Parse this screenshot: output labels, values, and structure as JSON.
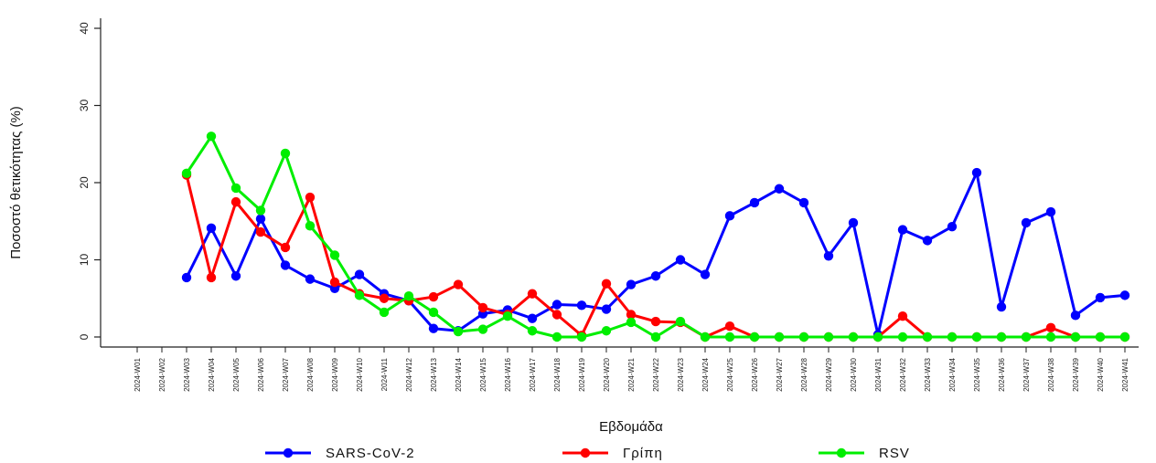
{
  "chart_data": {
    "type": "line",
    "xlabel": "Εβδομάδα",
    "ylabel": "Ποσοστό θετικότητας (%)",
    "ylim": [
      0,
      40
    ],
    "yticks": [
      0,
      10,
      20,
      30,
      40
    ],
    "grid": false,
    "legend_position": "bottom",
    "categories": [
      "2024-W01",
      "2024-W02",
      "2024-W03",
      "2024-W04",
      "2024-W05",
      "2024-W06",
      "2024-W07",
      "2024-W08",
      "2024-W09",
      "2024-W10",
      "2024-W11",
      "2024-W12",
      "2024-W13",
      "2024-W14",
      "2024-W15",
      "2024-W16",
      "2024-W17",
      "2024-W18",
      "2024-W19",
      "2024-W20",
      "2024-W21",
      "2024-W22",
      "2024-W23",
      "2024-W24",
      "2024-W25",
      "2024-W26",
      "2024-W27",
      "2024-W28",
      "2024-W29",
      "2024-W30",
      "2024-W31",
      "2024-W32",
      "2024-W33",
      "2024-W34",
      "2024-W35",
      "2024-W36",
      "2024-W37",
      "2024-W38",
      "2024-W39",
      "2024-W40",
      "2024-W41"
    ],
    "series": [
      {
        "name": "SARS-CoV-2",
        "color": "#0000ff",
        "values": [
          null,
          null,
          7.7,
          14.1,
          7.9,
          15.3,
          9.3,
          7.5,
          6.3,
          8.1,
          5.6,
          4.7,
          1.1,
          0.8,
          3.0,
          3.5,
          2.4,
          4.2,
          4.1,
          3.6,
          6.8,
          7.9,
          10.0,
          8.1,
          15.7,
          17.4,
          19.2,
          17.4,
          10.5,
          14.8,
          0.3,
          13.9,
          12.5,
          14.3,
          21.3,
          3.9,
          14.8,
          16.2,
          2.8,
          5.1,
          5.4
        ]
      },
      {
        "name": "Γρίπη",
        "color": "#ff0000",
        "values": [
          null,
          null,
          21.0,
          7.7,
          17.5,
          13.6,
          11.6,
          18.1,
          7.1,
          5.6,
          5.0,
          4.7,
          5.2,
          6.8,
          3.8,
          2.9,
          5.6,
          2.9,
          0.2,
          6.9,
          2.9,
          2.0,
          1.9,
          0.0,
          1.4,
          0.0,
          0.0,
          0.0,
          0.0,
          0.0,
          0.0,
          2.7,
          0.0,
          0.0,
          0.0,
          0.0,
          0.0,
          1.2,
          0.0,
          0.0,
          0.0
        ]
      },
      {
        "name": "RSV",
        "color": "#00ee00",
        "values": [
          null,
          null,
          21.2,
          26.0,
          19.3,
          16.4,
          23.8,
          14.4,
          10.6,
          5.4,
          3.2,
          5.3,
          3.2,
          0.7,
          1.0,
          2.7,
          0.8,
          0.0,
          0.0,
          0.8,
          1.9,
          0.0,
          2.0,
          0.0,
          0.0,
          0.0,
          0.0,
          0.0,
          0.0,
          0.0,
          0.0,
          0.0,
          0.0,
          0.0,
          0.0,
          0.0,
          0.0,
          0.0,
          0.0,
          0.0,
          0.0
        ]
      }
    ]
  }
}
